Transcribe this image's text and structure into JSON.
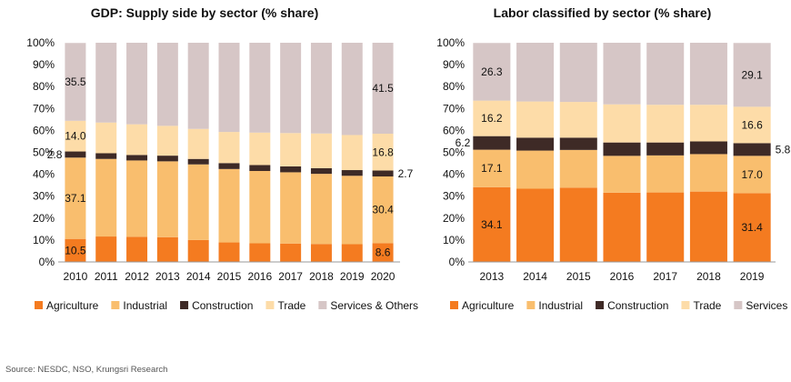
{
  "source": "Source: NESDC, NSO, Krungsri Research",
  "chart_data": [
    {
      "type": "bar",
      "stacked": true,
      "title": "GDP: Supply side by sector (% share)",
      "categories": [
        "2010",
        "2011",
        "2012",
        "2013",
        "2014",
        "2015",
        "2016",
        "2017",
        "2018",
        "2019",
        "2020"
      ],
      "ylim": [
        0,
        100
      ],
      "yticks": [
        "0%",
        "10%",
        "20%",
        "30%",
        "40%",
        "50%",
        "60%",
        "70%",
        "80%",
        "90%",
        "100%"
      ],
      "legend_position": "bottom",
      "series": [
        {
          "name": "Agriculture",
          "color": "#F47B20",
          "values": [
            10.5,
            11.6,
            11.5,
            11.3,
            10.0,
            8.9,
            8.5,
            8.4,
            8.2,
            8.1,
            8.6
          ]
        },
        {
          "name": "Industrial",
          "color": "#F9BE6E",
          "values": [
            37.1,
            35.4,
            34.8,
            34.6,
            34.5,
            33.5,
            33.0,
            32.5,
            32.0,
            31.2,
            30.4
          ]
        },
        {
          "name": "Construction",
          "color": "#3E2A26",
          "values": [
            2.8,
            2.6,
            2.5,
            2.6,
            2.5,
            2.7,
            2.7,
            2.7,
            2.6,
            2.6,
            2.7
          ]
        },
        {
          "name": "Trade",
          "color": "#FDDCA8",
          "values": [
            14.0,
            14.0,
            14.0,
            13.6,
            13.7,
            14.2,
            14.8,
            15.2,
            15.8,
            16.0,
            16.8
          ]
        },
        {
          "name": "Services & Others",
          "color": "#D6C6C6",
          "values": [
            35.5,
            36.4,
            37.2,
            37.9,
            39.3,
            40.7,
            41.0,
            41.2,
            41.4,
            42.1,
            41.5
          ]
        }
      ],
      "data_labels": [
        {
          "series": 0,
          "index": 0,
          "text": "10.5",
          "pos": "inside"
        },
        {
          "series": 1,
          "index": 0,
          "text": "37.1",
          "pos": "inside"
        },
        {
          "series": 2,
          "index": 0,
          "text": "2.8",
          "pos": "left"
        },
        {
          "series": 3,
          "index": 0,
          "text": "14.0",
          "pos": "inside"
        },
        {
          "series": 4,
          "index": 0,
          "text": "35.5",
          "pos": "inside"
        },
        {
          "series": 0,
          "index": 10,
          "text": "8.6",
          "pos": "inside"
        },
        {
          "series": 1,
          "index": 10,
          "text": "30.4",
          "pos": "inside"
        },
        {
          "series": 2,
          "index": 10,
          "text": "2.7",
          "pos": "right"
        },
        {
          "series": 3,
          "index": 10,
          "text": "16.8",
          "pos": "inside"
        },
        {
          "series": 4,
          "index": 10,
          "text": "41.5",
          "pos": "inside"
        }
      ]
    },
    {
      "type": "bar",
      "stacked": true,
      "title": "Labor classified by sector (% share)",
      "categories": [
        "2013",
        "2014",
        "2015",
        "2016",
        "2017",
        "2018",
        "2019"
      ],
      "ylim": [
        0,
        100
      ],
      "yticks": [
        "0%",
        "10%",
        "20%",
        "30%",
        "40%",
        "50%",
        "60%",
        "70%",
        "80%",
        "90%",
        "100%"
      ],
      "legend_position": "bottom",
      "series": [
        {
          "name": "Agriculture",
          "color": "#F47B20",
          "values": [
            34.1,
            33.4,
            33.9,
            31.6,
            31.7,
            32.1,
            31.4
          ]
        },
        {
          "name": "Industrial",
          "color": "#F9BE6E",
          "values": [
            17.1,
            17.4,
            17.2,
            16.8,
            16.9,
            17.1,
            17.0
          ]
        },
        {
          "name": "Construction",
          "color": "#3E2A26",
          "values": [
            6.2,
            5.9,
            5.6,
            6.1,
            5.9,
            5.8,
            5.8
          ]
        },
        {
          "name": "Trade",
          "color": "#FDDCA8",
          "values": [
            16.2,
            16.5,
            16.3,
            17.4,
            17.2,
            16.7,
            16.6
          ]
        },
        {
          "name": "Services",
          "color": "#D6C6C6",
          "values": [
            26.3,
            26.8,
            27.0,
            28.1,
            28.3,
            28.3,
            29.1
          ]
        }
      ],
      "data_labels": [
        {
          "series": 0,
          "index": 0,
          "text": "34.1",
          "pos": "inside"
        },
        {
          "series": 1,
          "index": 0,
          "text": "17.1",
          "pos": "inside"
        },
        {
          "series": 2,
          "index": 0,
          "text": "6.2",
          "pos": "left"
        },
        {
          "series": 3,
          "index": 0,
          "text": "16.2",
          "pos": "inside"
        },
        {
          "series": 4,
          "index": 0,
          "text": "26.3",
          "pos": "inside"
        },
        {
          "series": 0,
          "index": 6,
          "text": "31.4",
          "pos": "inside"
        },
        {
          "series": 1,
          "index": 6,
          "text": "17.0",
          "pos": "inside"
        },
        {
          "series": 2,
          "index": 6,
          "text": "5.8",
          "pos": "right"
        },
        {
          "series": 3,
          "index": 6,
          "text": "16.6",
          "pos": "inside"
        },
        {
          "series": 4,
          "index": 6,
          "text": "29.1",
          "pos": "inside"
        }
      ]
    }
  ]
}
